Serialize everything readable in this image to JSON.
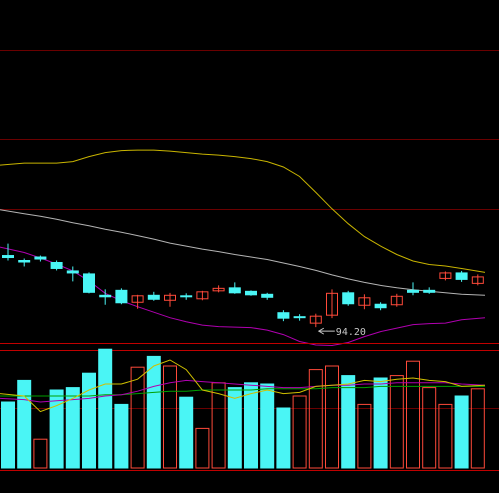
{
  "colors": {
    "background": "#000000",
    "grid": "#6a0000",
    "separator": "#c00000",
    "up": "#ff4a3a",
    "down": "#4af5f5",
    "upper_band": "#c8b400",
    "mid_band": "#b4b4b4",
    "lower_band": "#b000b0",
    "vol_ma_fast": "#d0c000",
    "vol_ma_mid": "#b000b0",
    "vol_ma_slow": "#00a000",
    "label": "#c8c8c8"
  },
  "chart_data": [
    {
      "type": "candlestick",
      "annotation": {
        "text": "94.20",
        "index": 19,
        "price": 94.2
      },
      "ylim": [
        90,
        160
      ],
      "gridlines": [
        150,
        132,
        118
      ],
      "candles": [
        {
          "open": 108.6,
          "close": 108.2,
          "high": 111.0,
          "low": 107.6
        },
        {
          "open": 107.6,
          "close": 107.3,
          "high": 108.0,
          "low": 106.4
        },
        {
          "open": 108.3,
          "close": 107.9,
          "high": 108.6,
          "low": 107.4
        },
        {
          "open": 107.2,
          "close": 106.0,
          "high": 107.6,
          "low": 105.6
        },
        {
          "open": 105.5,
          "close": 105.1,
          "high": 106.4,
          "low": 103.4
        },
        {
          "open": 104.9,
          "close": 101.2,
          "high": 105.2,
          "low": 101.0
        },
        {
          "open": 100.6,
          "close": 100.3,
          "high": 101.8,
          "low": 98.7
        },
        {
          "open": 101.6,
          "close": 99.1,
          "high": 102.0,
          "low": 98.8
        },
        {
          "open": 99.2,
          "close": 100.5,
          "high": 100.7,
          "low": 97.9
        },
        {
          "open": 100.6,
          "close": 99.8,
          "high": 101.3,
          "low": 99.5
        },
        {
          "open": 99.6,
          "close": 100.6,
          "high": 101.1,
          "low": 98.3
        },
        {
          "open": 100.5,
          "close": 100.4,
          "high": 101.0,
          "low": 99.7
        },
        {
          "open": 99.9,
          "close": 101.3,
          "high": 101.5,
          "low": 99.6
        },
        {
          "open": 101.5,
          "close": 102.0,
          "high": 102.6,
          "low": 101.2
        },
        {
          "open": 102.1,
          "close": 101.1,
          "high": 103.2,
          "low": 100.9
        },
        {
          "open": 101.4,
          "close": 100.7,
          "high": 101.6,
          "low": 100.5
        },
        {
          "open": 100.8,
          "close": 100.2,
          "high": 101.1,
          "low": 99.7
        },
        {
          "open": 97.1,
          "close": 96.0,
          "high": 97.6,
          "low": 95.4
        },
        {
          "open": 96.3,
          "close": 96.1,
          "high": 96.8,
          "low": 95.5
        },
        {
          "open": 95.0,
          "close": 96.4,
          "high": 96.9,
          "low": 94.2
        },
        {
          "open": 96.6,
          "close": 101.0,
          "high": 101.8,
          "low": 96.0
        },
        {
          "open": 101.1,
          "close": 98.9,
          "high": 101.5,
          "low": 98.5
        },
        {
          "open": 98.6,
          "close": 100.1,
          "high": 100.8,
          "low": 97.8
        },
        {
          "open": 98.8,
          "close": 98.1,
          "high": 99.2,
          "low": 97.6
        },
        {
          "open": 98.7,
          "close": 100.4,
          "high": 100.9,
          "low": 98.3
        },
        {
          "open": 101.6,
          "close": 101.2,
          "high": 103.2,
          "low": 100.6
        },
        {
          "open": 101.6,
          "close": 101.2,
          "high": 102.2,
          "low": 100.9
        },
        {
          "open": 104.0,
          "close": 105.1,
          "high": 105.4,
          "low": 103.6
        },
        {
          "open": 105.1,
          "close": 103.8,
          "high": 105.5,
          "low": 103.3
        },
        {
          "open": 103.0,
          "close": 104.3,
          "high": 104.8,
          "low": 102.6
        }
      ],
      "upper_band": [
        126.8,
        127.2,
        127.2,
        127.2,
        127.5,
        128.5,
        129.3,
        129.7,
        129.8,
        129.8,
        129.6,
        129.3,
        129.0,
        128.8,
        128.5,
        128.1,
        127.5,
        126.4,
        124.5,
        121.3,
        118.0,
        115.0,
        112.4,
        110.5,
        108.8,
        107.5,
        106.8,
        106.5,
        106.0,
        105.2
      ],
      "mid_band": [
        117.8,
        117.0,
        116.5,
        115.9,
        115.2,
        114.6,
        113.9,
        113.3,
        112.6,
        111.9,
        111.1,
        110.5,
        109.9,
        109.4,
        108.8,
        108.3,
        107.8,
        107.1,
        106.4,
        105.6,
        104.7,
        103.9,
        103.2,
        102.6,
        102.1,
        101.7,
        101.4,
        101.1,
        100.8,
        100.6
      ],
      "lower_band": [
        110.3,
        109.2,
        108.1,
        106.9,
        105.5,
        103.5,
        101.0,
        99.5,
        98.3,
        97.2,
        96.1,
        95.3,
        94.6,
        94.3,
        94.2,
        94.1,
        93.6,
        92.7,
        91.3,
        90.6,
        90.5,
        91.1,
        92.3,
        93.3,
        94.0,
        94.7,
        94.9,
        95.0,
        95.7,
        96.1
      ]
    },
    {
      "type": "bar",
      "ylim": [
        0,
        100
      ],
      "gridlines": [
        50
      ],
      "volume": [
        {
          "value": 55,
          "dir": "down"
        },
        {
          "value": 73,
          "dir": "down"
        },
        {
          "value": 24,
          "dir": "up"
        },
        {
          "value": 65,
          "dir": "down"
        },
        {
          "value": 67,
          "dir": "down"
        },
        {
          "value": 79,
          "dir": "down"
        },
        {
          "value": 99,
          "dir": "down"
        },
        {
          "value": 53,
          "dir": "down"
        },
        {
          "value": 84,
          "dir": "up"
        },
        {
          "value": 93,
          "dir": "down"
        },
        {
          "value": 85,
          "dir": "up"
        },
        {
          "value": 59,
          "dir": "down"
        },
        {
          "value": 33,
          "dir": "up"
        },
        {
          "value": 71,
          "dir": "up"
        },
        {
          "value": 67,
          "dir": "down"
        },
        {
          "value": 71,
          "dir": "down"
        },
        {
          "value": 70,
          "dir": "down"
        },
        {
          "value": 50,
          "dir": "down"
        },
        {
          "value": 60,
          "dir": "up"
        },
        {
          "value": 82,
          "dir": "up"
        },
        {
          "value": 85,
          "dir": "up"
        },
        {
          "value": 77,
          "dir": "down"
        },
        {
          "value": 53,
          "dir": "up"
        },
        {
          "value": 75,
          "dir": "down"
        },
        {
          "value": 77,
          "dir": "up"
        },
        {
          "value": 89,
          "dir": "up"
        },
        {
          "value": 67,
          "dir": "up"
        },
        {
          "value": 53,
          "dir": "up"
        },
        {
          "value": 60,
          "dir": "down"
        },
        {
          "value": 66,
          "dir": "up"
        }
      ],
      "ma_fast": [
        62,
        60,
        47,
        52,
        58,
        65,
        70,
        70,
        74,
        85,
        90,
        82,
        65,
        62,
        58,
        62,
        65,
        62,
        63,
        68,
        69,
        70,
        73,
        72,
        74,
        75,
        73,
        72,
        68,
        69
      ],
      "ma_mid": [
        58,
        57,
        55,
        56,
        57,
        58,
        60,
        61,
        64,
        68,
        71,
        73,
        72,
        71,
        70,
        69,
        68,
        67,
        67,
        68,
        69,
        69,
        70,
        70,
        71,
        71,
        71,
        71,
        70,
        69
      ],
      "ma_slow": [
        60,
        60,
        60,
        60,
        60,
        60,
        61,
        61,
        62,
        63,
        64,
        64,
        65,
        65,
        65,
        65,
        66,
        66,
        66,
        66,
        67,
        67,
        67,
        68,
        68,
        68,
        68,
        68,
        68,
        68
      ]
    }
  ]
}
